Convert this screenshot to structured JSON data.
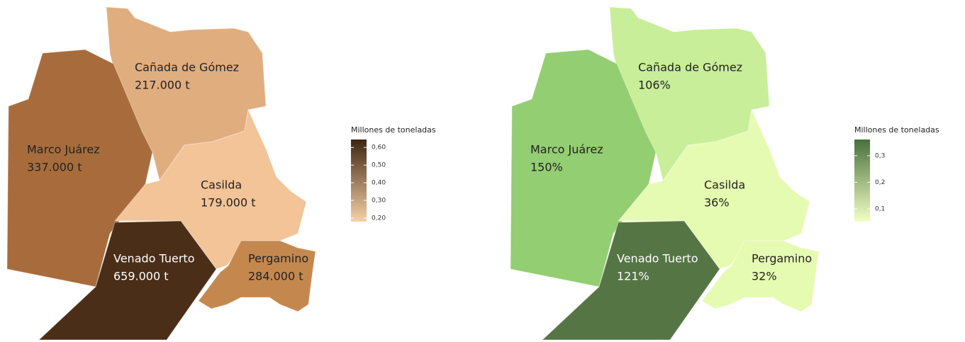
{
  "maps": [
    {
      "legend": {
        "title": "Millones de toneladas",
        "range": [
          0.18,
          0.645
        ],
        "colors": [
          "#f6d2a8",
          "#3d2511"
        ],
        "ticks": [
          {
            "value": 0.6,
            "label": "0,60"
          },
          {
            "value": 0.5,
            "label": "0,50"
          },
          {
            "value": 0.4,
            "label": "0,40"
          },
          {
            "value": 0.3,
            "label": "0,30"
          },
          {
            "value": 0.2,
            "label": "0,20"
          }
        ]
      },
      "regions": [
        {
          "name": "Cañada de Gómez",
          "label": "217.000 t",
          "color": "#e0ad7f"
        },
        {
          "name": "Marco Juárez",
          "label": "337.000 t",
          "color": "#a86c3c"
        },
        {
          "name": "Casilda",
          "label": "179.000 t",
          "color": "#f2c497"
        },
        {
          "name": "Venado Tuerto",
          "label": "659.000 t",
          "color": "#4a2e18"
        },
        {
          "name": "Pergamino",
          "label": "284.000 t",
          "color": "#c4884f"
        }
      ]
    },
    {
      "legend": {
        "title": "Millones de toneladas",
        "range": [
          0.052,
          0.361
        ],
        "colors": [
          "#f2ffc4",
          "#49703d"
        ],
        "ticks": [
          {
            "value": 0.3,
            "label": "0,3"
          },
          {
            "value": 0.2,
            "label": "0,2"
          },
          {
            "value": 0.1,
            "label": "0,1"
          }
        ]
      },
      "regions": [
        {
          "name": "Cañada de Gómez",
          "label": "106%",
          "color": "#c8ee99"
        },
        {
          "name": "Marco Juárez",
          "label": "150%",
          "color": "#93ce72"
        },
        {
          "name": "Casilda",
          "label": "36%",
          "color": "#e6fbb2"
        },
        {
          "name": "Venado Tuerto",
          "label": "121%",
          "color": "#557545"
        },
        {
          "name": "Pergamino",
          "label": "32%",
          "color": "#e6fbb2"
        }
      ]
    }
  ]
}
